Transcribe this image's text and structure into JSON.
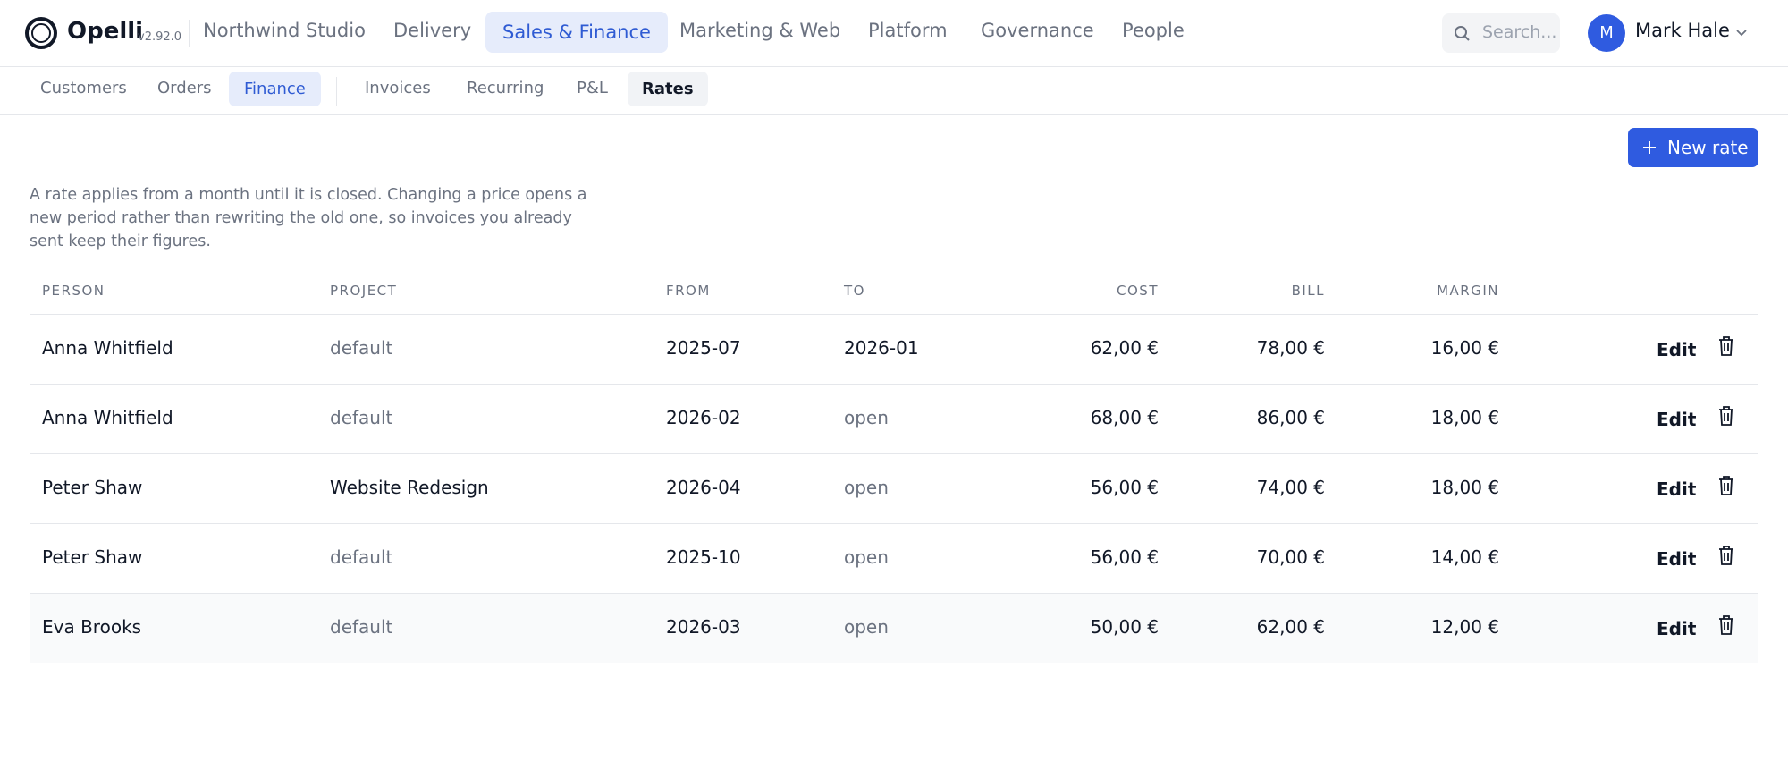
{
  "header": {
    "brand": "Opelli",
    "version": "v2.92.0",
    "workspace": "Northwind Studio",
    "nav": [
      "Delivery",
      "Sales & Finance",
      "Marketing & Web",
      "Platform",
      "Governance",
      "People"
    ],
    "search_placeholder": "Search...",
    "user_initial": "M",
    "user_name": "Mark Hale"
  },
  "subnav": {
    "groups": [
      "Customers",
      "Orders",
      "Finance"
    ],
    "tabs": [
      "Invoices",
      "Recurring",
      "P&L",
      "Rates"
    ]
  },
  "new_button": "New rate",
  "description": "A rate applies from a month until it is closed. Changing a price opens a new period rather than rewriting the old one, so invoices you already sent keep their figures.",
  "table": {
    "columns": [
      "PERSON",
      "PROJECT",
      "FROM",
      "TO",
      "COST",
      "BILL",
      "MARGIN"
    ],
    "rows": [
      [
        "Anna Whitfield",
        "default",
        "2025-07",
        "2026-01",
        "62,00 €",
        "78,00 €",
        "16,00 €"
      ],
      [
        "Anna Whitfield",
        "default",
        "2026-02",
        "open",
        "68,00 €",
        "86,00 €",
        "18,00 €"
      ],
      [
        "Peter Shaw",
        "Website Redesign",
        "2026-04",
        "open",
        "56,00 €",
        "74,00 €",
        "18,00 €"
      ],
      [
        "Peter Shaw",
        "default",
        "2025-10",
        "open",
        "56,00 €",
        "70,00 €",
        "14,00 €"
      ],
      [
        "Eva Brooks",
        "default",
        "2026-03",
        "open",
        "50,00 €",
        "62,00 €",
        "12,00 €"
      ]
    ],
    "edit_label": "Edit"
  }
}
